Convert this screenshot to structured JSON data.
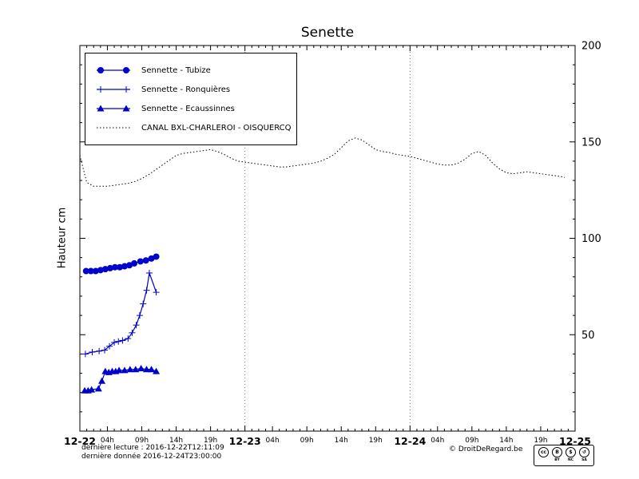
{
  "title": "Senette",
  "axes": {
    "ylabel": "Hauteur cm"
  },
  "footer": {
    "line1": "dernière lecture : 2016-12-22T12:11:09",
    "line2": "dernière donnée  2016-12-24T23:00:00",
    "copyright": "© DroitDeRegard.be",
    "license": {
      "cells": [
        {
          "icon": "cc-icon",
          "glyph": "cc",
          "label": ""
        },
        {
          "icon": "by-icon",
          "glyph": "B",
          "label": "BY"
        },
        {
          "icon": "nc-icon",
          "glyph": "$",
          "label": "NC"
        },
        {
          "icon": "sa-icon",
          "glyph": "↺",
          "label": "SA"
        }
      ]
    }
  },
  "colors": {
    "series_blue": "#0000cc",
    "series_black": "#000000",
    "grid": "#777777"
  },
  "chart_data": {
    "type": "line",
    "title": "Senette",
    "ylabel": "Hauteur cm",
    "x_unit": "hours since 2016-12-22 00:00",
    "xlim": [
      0,
      72
    ],
    "ylim": [
      0,
      200
    ],
    "grid_vertical_hours": [
      24,
      48
    ],
    "x_ticks_major": [
      {
        "h": 0,
        "label": "12-22"
      },
      {
        "h": 24,
        "label": "12-23"
      },
      {
        "h": 48,
        "label": "12-24"
      },
      {
        "h": 72,
        "label": "12-25"
      }
    ],
    "x_ticks_minor": [
      {
        "h": 4,
        "label": "04h"
      },
      {
        "h": 9,
        "label": "09h"
      },
      {
        "h": 14,
        "label": "14h"
      },
      {
        "h": 19,
        "label": "19h"
      },
      {
        "h": 28,
        "label": "04h"
      },
      {
        "h": 33,
        "label": "09h"
      },
      {
        "h": 38,
        "label": "14h"
      },
      {
        "h": 43,
        "label": "19h"
      },
      {
        "h": 52,
        "label": "04h"
      },
      {
        "h": 57,
        "label": "09h"
      },
      {
        "h": 62,
        "label": "14h"
      },
      {
        "h": 67,
        "label": "19h"
      }
    ],
    "y_ticks": [
      {
        "v": 0,
        "label": ""
      },
      {
        "v": 50,
        "label": "50"
      },
      {
        "v": 100,
        "label": "100"
      },
      {
        "v": 150,
        "label": "150"
      },
      {
        "v": 200,
        "label": "200"
      }
    ],
    "series": [
      {
        "name": "Sennette - Tubize",
        "color": "#0000cc",
        "marker": "circle",
        "line": "solid",
        "x": [
          0.9,
          1.6,
          2.3,
          3,
          3.7,
          4.4,
          5.1,
          5.8,
          6.5,
          7.2,
          7.9,
          8.8,
          9.6,
          10.4,
          11.1
        ],
        "y": [
          83,
          83,
          83,
          83.5,
          84,
          84.5,
          85,
          85,
          85.5,
          86,
          87,
          88,
          88.5,
          89.5,
          90.5
        ]
      },
      {
        "name": "Sennette - Ronquières",
        "color": "#0000cc",
        "marker": "plus",
        "line": "solid",
        "x": [
          0.8,
          1.8,
          2.8,
          3.6,
          4.3,
          5,
          5.6,
          6.2,
          7,
          7.6,
          8.2,
          8.7,
          9.2,
          9.7,
          10.1,
          11.1
        ],
        "y": [
          40,
          41,
          41.5,
          42,
          44,
          46,
          46.5,
          47,
          48,
          51,
          55,
          60,
          66,
          73,
          82,
          72
        ]
      },
      {
        "name": "Sennette - Ecaussinnes",
        "color": "#0000cc",
        "marker": "triangle",
        "line": "solid",
        "x": [
          0.7,
          1.2,
          1.7,
          2.7,
          3.2,
          3.7,
          4.2,
          4.7,
          5.2,
          5.7,
          6.5,
          7.3,
          8.1,
          8.9,
          9.7,
          10.4,
          11.1
        ],
        "y": [
          21,
          21,
          21.5,
          22,
          26,
          31,
          30.5,
          31,
          31,
          31.5,
          31.5,
          32,
          32,
          32.5,
          32,
          32,
          31
        ]
      },
      {
        "name": "CANAL BXL-CHARLEROI  - OISQUERCQ",
        "color": "#000000",
        "marker": "none",
        "line": "dotted",
        "x": [
          0,
          0.5,
          1,
          2,
          3,
          4,
          5,
          6,
          7,
          8,
          9,
          10,
          11,
          12,
          13,
          14,
          15,
          16,
          17,
          18,
          19,
          20,
          21,
          22,
          23,
          24,
          25,
          26,
          27,
          28,
          29,
          30,
          31,
          32,
          33,
          34,
          35,
          36,
          37,
          38,
          39,
          40,
          41,
          42,
          43,
          44,
          45,
          46,
          47,
          48,
          49,
          50,
          51,
          52,
          53,
          54,
          55,
          56,
          57,
          58,
          59,
          60,
          61,
          62,
          63,
          64,
          65,
          66,
          67,
          68,
          69,
          70,
          70.5
        ],
        "y": [
          143,
          136,
          129,
          127,
          127,
          127,
          127.5,
          128,
          128.5,
          129.5,
          131,
          133,
          135.5,
          138,
          140.5,
          143,
          144,
          144.5,
          145,
          145.5,
          146,
          145,
          143.5,
          141.5,
          140,
          139.5,
          139,
          138.5,
          138,
          137.5,
          137,
          137,
          137.5,
          138,
          138.5,
          139,
          140,
          141.5,
          143.5,
          147,
          150.5,
          152,
          151,
          148.5,
          146,
          145,
          144.5,
          143.5,
          143,
          142.5,
          141.5,
          140.5,
          139.5,
          138.5,
          138,
          138,
          139,
          141,
          144,
          145,
          143,
          139,
          136,
          134,
          133.5,
          134,
          134.5,
          134,
          133.5,
          133,
          132.5,
          132,
          131.5
        ]
      }
    ]
  }
}
